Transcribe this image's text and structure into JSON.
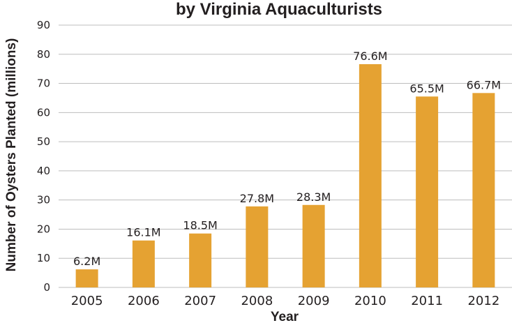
{
  "chart_data": {
    "type": "bar",
    "title": "by Virginia Aquaculturists",
    "xlabel": "Year",
    "ylabel": "Number of Oysters Planted (millions)",
    "categories": [
      "2005",
      "2006",
      "2007",
      "2008",
      "2009",
      "2010",
      "2011",
      "2012"
    ],
    "values": [
      6.2,
      16.1,
      18.5,
      27.8,
      28.3,
      76.6,
      65.5,
      66.7
    ],
    "data_labels": [
      "6.2M",
      "16.1M",
      "18.5M",
      "27.8M",
      "28.3M",
      "76.6M",
      "65.5M",
      "66.7M"
    ],
    "ylim": [
      0,
      90
    ],
    "yticks": [
      "0",
      "10",
      "20",
      "30",
      "40",
      "50",
      "60",
      "70",
      "80",
      "90"
    ],
    "grid": true,
    "bar_color": "#e5a232"
  }
}
